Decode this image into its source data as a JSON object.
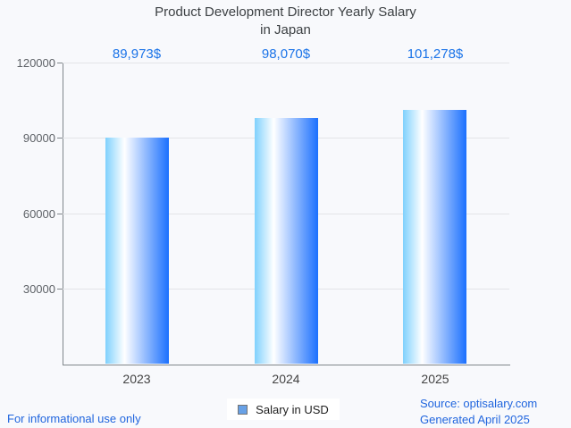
{
  "page": {
    "background": "#F8F9FC"
  },
  "title": {
    "text": "Product Development Director Yearly Salary\nin Japan",
    "color": "#3C4043"
  },
  "chart_data": {
    "type": "bar",
    "title": "Product Development Director Yearly Salary in Japan",
    "categories": [
      "2023",
      "2024",
      "2025"
    ],
    "values": [
      89973,
      98070,
      101278
    ],
    "value_labels": [
      "89,973$",
      "98,070$",
      "101,278$"
    ],
    "xlabel": "",
    "ylabel": "",
    "ylim": [
      0,
      120000
    ],
    "yticks": [
      30000,
      60000,
      90000,
      120000
    ],
    "ytick_labels": [
      "30000",
      "60000",
      "90000",
      "120000"
    ],
    "grid": true,
    "legend": {
      "label": "Salary in USD",
      "position": "bottom"
    },
    "colors": {
      "bar_gradient_left": "#7FD1FD",
      "bar_gradient_mid": "#FFFFFF",
      "bar_gradient_right": "#1B70FE",
      "value_label": "#1A73E8",
      "axis_line": "#80868B",
      "gridline": "#E3E4E8",
      "tick_text": "#5F6368",
      "category_text": "#424242",
      "legend_marker_fill": "#68A1E6",
      "legend_marker_border": "#757575"
    }
  },
  "footer": {
    "left_note": "For informational use only",
    "source_line1": "Source: optisalary.com",
    "source_line2": "Generated April 2025",
    "color": "#2065DE"
  }
}
